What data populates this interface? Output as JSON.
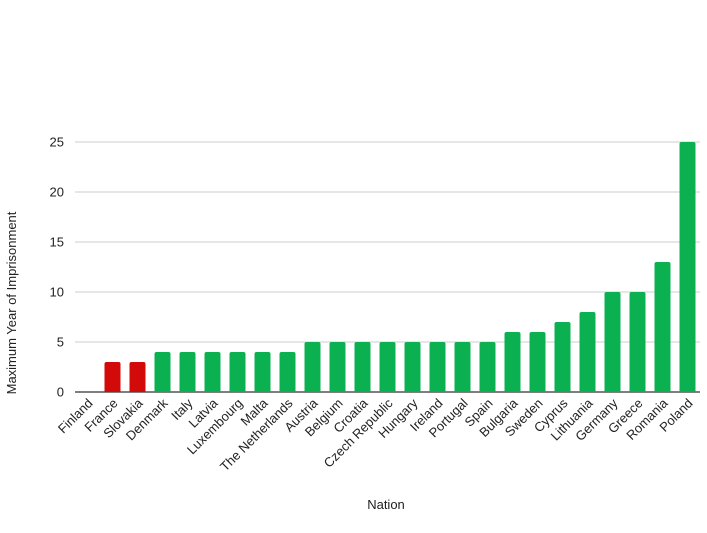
{
  "chart_data": {
    "type": "bar",
    "xlabel": "Nation",
    "ylabel": "Maximum Year of Imprisonment",
    "ylim": [
      0,
      25
    ],
    "yticks": [
      0,
      5,
      10,
      15,
      20,
      25
    ],
    "grid": true,
    "categories": [
      "Finland",
      "France",
      "Slovakia",
      "Denmark",
      "Italy",
      "Latvia",
      "Luxembourg",
      "Malta",
      "The Netherlands",
      "Austria",
      "Belgium",
      "Croatia",
      "Czech Republic",
      "Hungary",
      "Ireland",
      "Portugal",
      "Spain",
      "Bulgaria",
      "Sweden",
      "Cyprus",
      "Lithuania",
      "Germany",
      "Greece",
      "Romania",
      "Poland"
    ],
    "values": [
      0,
      3,
      3,
      4,
      4,
      4,
      4,
      4,
      4,
      5,
      5,
      5,
      5,
      5,
      5,
      5,
      5,
      6,
      6,
      7,
      8,
      10,
      10,
      13,
      25
    ],
    "bar_colors": [
      "#d20a0a",
      "#d20a0a",
      "#d20a0a",
      "#0bb150",
      "#0bb150",
      "#0bb150",
      "#0bb150",
      "#0bb150",
      "#0bb150",
      "#0bb150",
      "#0bb150",
      "#0bb150",
      "#0bb150",
      "#0bb150",
      "#0bb150",
      "#0bb150",
      "#0bb150",
      "#0bb150",
      "#0bb150",
      "#0bb150",
      "#0bb150",
      "#0bb150",
      "#0bb150",
      "#0bb150",
      "#0bb150"
    ],
    "gridline_color": "#cccccc",
    "axis_color": "#333333"
  }
}
